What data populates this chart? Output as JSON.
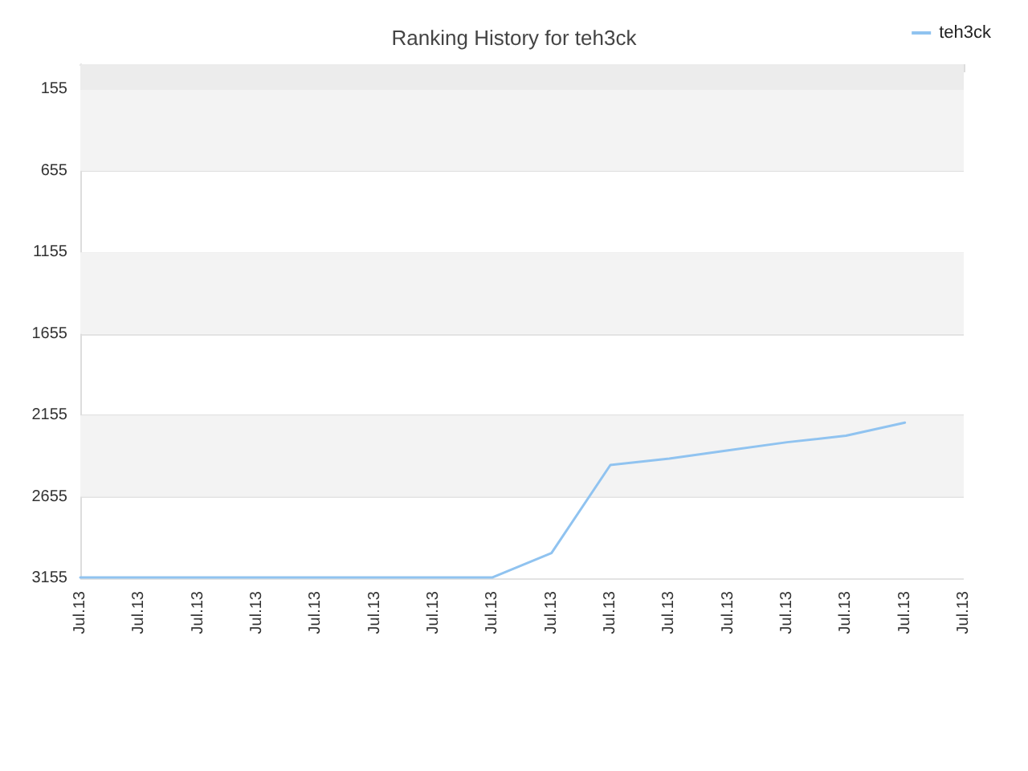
{
  "chart_data": {
    "type": "line",
    "title": "Ranking History for teh3ck",
    "categories": [
      "Jul.13",
      "Jul.13",
      "Jul.13",
      "Jul.13",
      "Jul.13",
      "Jul.13",
      "Jul.13",
      "Jul.13",
      "Jul.13",
      "Jul.13",
      "Jul.13",
      "Jul.13",
      "Jul.13",
      "Jul.13",
      "Jul.13",
      "Jul.13"
    ],
    "series": [
      {
        "name": "teh3ck",
        "color": "#90c3f0",
        "values": [
          3150,
          3150,
          3150,
          3150,
          3150,
          3150,
          3150,
          3150,
          3000,
          2460,
          2420,
          2370,
          2320,
          2280,
          2200,
          null
        ]
      }
    ],
    "ylim": [
      3155,
      0
    ],
    "yticks": [
      155,
      655,
      1155,
      1655,
      2155,
      2655,
      3155
    ],
    "bands": [
      {
        "axis": "y",
        "from": 0,
        "to": 155,
        "color": "#ececec"
      },
      {
        "axis": "y",
        "from": 155,
        "to": 655,
        "color": "#f3f3f3"
      },
      {
        "axis": "y",
        "from": 1155,
        "to": 1655,
        "color": "#f3f3f3"
      },
      {
        "axis": "y",
        "from": 2155,
        "to": 2655,
        "color": "#f3f3f3"
      }
    ],
    "grid": "y",
    "legend": "top right",
    "marker": "none",
    "line_style": "solid"
  }
}
